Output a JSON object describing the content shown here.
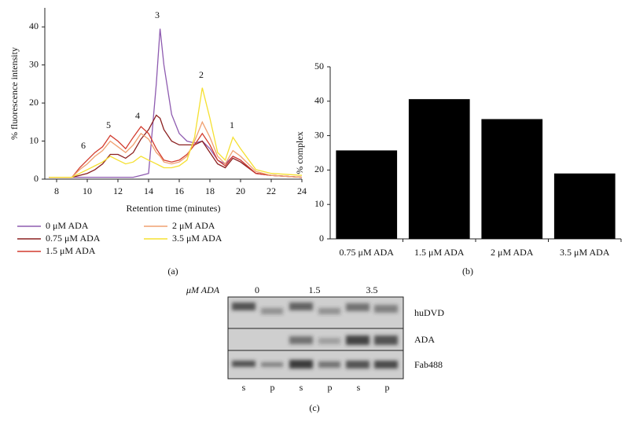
{
  "chart_data": [
    {
      "type": "line",
      "panel_label": "(a)",
      "xlabel": "Retention time (minutes)",
      "ylabel": "% fluorescence intensity",
      "annotations": [
        "1",
        "2",
        "3",
        "4",
        "5",
        "6"
      ],
      "x": [
        7.5,
        9,
        9.5,
        10,
        10.5,
        11,
        11.5,
        12,
        12.5,
        13,
        13.5,
        14,
        14.5,
        14.75,
        15,
        15.5,
        16,
        16.5,
        17,
        17.5,
        18,
        18.5,
        19,
        19.5,
        20,
        21,
        22,
        24
      ],
      "series": [
        {
          "name": "0 μM ADA",
          "color": "#8e5bb0",
          "values": [
            0.5,
            0.5,
            0.5,
            0.5,
            0.5,
            0.5,
            0.5,
            0.5,
            0.5,
            0.5,
            1,
            1.5,
            25,
            39.5,
            30,
            17,
            12,
            10,
            9.5,
            10,
            8,
            5,
            4,
            6,
            5,
            1.5,
            1,
            0.5
          ]
        },
        {
          "name": "0.75 μM ADA",
          "color": "#8b2020",
          "values": [
            0.5,
            0.5,
            1,
            1.5,
            2.5,
            4,
            6.5,
            6.5,
            5.5,
            7,
            10.5,
            13,
            16.8,
            16,
            13,
            10,
            9,
            9,
            9,
            10,
            7,
            4,
            3,
            5.5,
            4.5,
            1.5,
            1,
            0.5
          ]
        },
        {
          "name": "1.5 μM ADA",
          "color": "#d23c2e",
          "values": [
            0.5,
            0.5,
            3,
            5,
            7,
            8.5,
            11.5,
            10,
            8,
            11,
            13.8,
            12,
            8,
            6.5,
            5,
            4.5,
            5,
            6.5,
            9,
            12,
            9,
            5,
            3.5,
            6,
            5,
            1.5,
            1,
            0.5
          ]
        },
        {
          "name": "2 μM ADA",
          "color": "#f0a070",
          "values": [
            0.5,
            0.5,
            2.5,
            4,
            6,
            7.5,
            10,
            8.5,
            7,
            9,
            12,
            10.5,
            7,
            6,
            4.5,
            4,
            4.5,
            6,
            10,
            15,
            11,
            6,
            4,
            7.5,
            6,
            2,
            1,
            0.5
          ]
        },
        {
          "name": "3.5 μM ADA",
          "color": "#f5e030",
          "values": [
            0.5,
            0.5,
            1.5,
            2.5,
            3.5,
            4.5,
            6,
            5,
            4,
            4.5,
            6,
            5,
            4,
            3.5,
            3,
            3,
            3.5,
            5,
            11,
            24,
            16,
            7,
            5,
            11,
            8,
            2.5,
            1.5,
            1
          ]
        }
      ],
      "xlim": [
        7.23,
        24
      ],
      "xticks": [
        8,
        10,
        12,
        14,
        16,
        18,
        20,
        22,
        24
      ],
      "ylim": [
        0,
        45
      ],
      "yticks": [
        0,
        10,
        20,
        30,
        40
      ]
    },
    {
      "type": "bar",
      "panel_label": "(b)",
      "ylabel": "% complex",
      "categories": [
        "0.75 μM ADA",
        "1.5 μM ADA",
        "2 μM ADA",
        "3.5 μM ADA"
      ],
      "values": [
        25.7,
        40.6,
        34.8,
        19
      ],
      "color": "#000000",
      "ylim": [
        0,
        50
      ],
      "yticks": [
        0,
        10,
        20,
        30,
        40,
        50
      ]
    }
  ],
  "panel_c": {
    "label": "(c)",
    "row_header": "μM ADA",
    "concentrations": [
      "0",
      "1.5",
      "3.5"
    ],
    "bands": [
      "huDVD",
      "ADA",
      "Fab488"
    ],
    "lanes": [
      "s",
      "p",
      "s",
      "p",
      "s",
      "p"
    ]
  }
}
